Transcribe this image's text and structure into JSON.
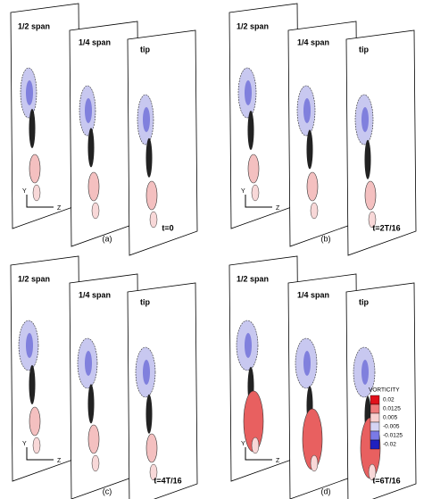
{
  "panels": [
    {
      "caption": "(a)",
      "time": "t=0",
      "planes": [
        "1/2 span",
        "1/4 span",
        "tip"
      ],
      "axes": {
        "y": "Y",
        "z": "Z"
      }
    },
    {
      "caption": "(b)",
      "time": "t=2T/16",
      "planes": [
        "1/2 span",
        "1/4 span",
        "tip"
      ],
      "axes": {
        "y": "Y",
        "z": "Z"
      }
    },
    {
      "caption": "(c)",
      "time": "t=4T/16",
      "planes": [
        "1/2 span",
        "1/4 span",
        "tip"
      ],
      "axes": {
        "y": "Y",
        "z": "Z"
      }
    },
    {
      "caption": "(d)",
      "time": "t=6T/16",
      "planes": [
        "1/2 span",
        "1/4 span",
        "tip"
      ],
      "axes": {
        "y": "Y",
        "z": "Z"
      }
    }
  ],
  "legend": {
    "title": "VORTICITY",
    "levels": [
      {
        "value": 0.02,
        "color": "#e0101a"
      },
      {
        "value": 0.0125,
        "color": "#ee7a7a"
      },
      {
        "value": 0.005,
        "color": "#f8d0d0"
      },
      {
        "value": -0.005,
        "color": "#d4d4f4"
      },
      {
        "value": -0.0125,
        "color": "#7a7ae6"
      },
      {
        "value": -0.02,
        "color": "#2020c0"
      }
    ]
  }
}
